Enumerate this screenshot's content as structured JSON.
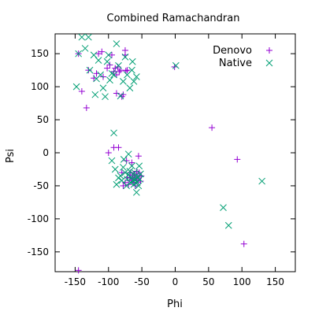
{
  "chart_data": {
    "type": "scatter",
    "title": "Combined Ramachandran",
    "xlabel": "Phi",
    "ylabel": "Psi",
    "xlim": [
      -180,
      180
    ],
    "ylim": [
      -180,
      180
    ],
    "xticks": [
      -150,
      -100,
      -50,
      0,
      50,
      100,
      150
    ],
    "yticks": [
      -150,
      -100,
      -50,
      0,
      50,
      100,
      150
    ],
    "grid": false,
    "legend_position": "top-right",
    "series": [
      {
        "name": "Denovo",
        "marker": "plus",
        "color": "#9400d3",
        "points": [
          [
            -145,
            150
          ],
          [
            -140,
            93
          ],
          [
            -133,
            68
          ],
          [
            -130,
            125
          ],
          [
            -122,
            113
          ],
          [
            -118,
            120
          ],
          [
            -115,
            150
          ],
          [
            -110,
            153
          ],
          [
            -108,
            115
          ],
          [
            -102,
            128
          ],
          [
            -98,
            133
          ],
          [
            -95,
            148
          ],
          [
            -92,
            123
          ],
          [
            -90,
            128
          ],
          [
            -88,
            118
          ],
          [
            -86,
            130
          ],
          [
            -84,
            123
          ],
          [
            -82,
            125
          ],
          [
            -80,
            85
          ],
          [
            -78,
            88
          ],
          [
            -75,
            155
          ],
          [
            -75,
            148
          ],
          [
            -74,
            124
          ],
          [
            -72,
            125
          ],
          [
            -88,
            90
          ],
          [
            -1,
            130
          ],
          [
            55,
            38
          ],
          [
            93,
            -10
          ],
          [
            103,
            -138
          ],
          [
            -145,
            -178
          ],
          [
            -100,
            0
          ],
          [
            -92,
            8
          ],
          [
            -85,
            8
          ],
          [
            -80,
            -30
          ],
          [
            -78,
            -50
          ],
          [
            -75,
            -45
          ],
          [
            -73,
            -12
          ],
          [
            -72,
            -38
          ],
          [
            -70,
            -48
          ],
          [
            -68,
            -37
          ],
          [
            -67,
            -30
          ],
          [
            -66,
            -42
          ],
          [
            -65,
            -15
          ],
          [
            -64,
            -35
          ],
          [
            -63,
            -40
          ],
          [
            -62,
            -45
          ],
          [
            -61,
            -33
          ],
          [
            -60,
            -38
          ],
          [
            -60,
            -50
          ],
          [
            -58,
            -28
          ],
          [
            -58,
            -42
          ],
          [
            -57,
            -36
          ],
          [
            -56,
            -45
          ],
          [
            -55,
            -5
          ],
          [
            -55,
            -38
          ],
          [
            -54,
            -30
          ],
          [
            -52,
            -43
          ],
          [
            -51,
            -35
          ]
        ]
      },
      {
        "name": "Native",
        "marker": "x",
        "color": "#009e73",
        "points": [
          [
            -148,
            100
          ],
          [
            -145,
            150
          ],
          [
            -140,
            175
          ],
          [
            -135,
            158
          ],
          [
            -130,
            175
          ],
          [
            -128,
            125
          ],
          [
            -122,
            148
          ],
          [
            -120,
            88
          ],
          [
            -118,
            112
          ],
          [
            -115,
            140
          ],
          [
            -112,
            118
          ],
          [
            -108,
            98
          ],
          [
            -105,
            85
          ],
          [
            -102,
            138
          ],
          [
            -100,
            148
          ],
          [
            -98,
            110
          ],
          [
            -95,
            120
          ],
          [
            -92,
            118
          ],
          [
            -88,
            165
          ],
          [
            -85,
            132
          ],
          [
            -82,
            86
          ],
          [
            -78,
            108
          ],
          [
            -75,
            145
          ],
          [
            -72,
            118
          ],
          [
            -68,
            98
          ],
          [
            -65,
            125
          ],
          [
            -62,
            108
          ],
          [
            -58,
            115
          ],
          [
            -64,
            138
          ],
          [
            1,
            132
          ],
          [
            72,
            -83
          ],
          [
            80,
            -110
          ],
          [
            130,
            -43
          ],
          [
            -92,
            30
          ],
          [
            -95,
            -12
          ],
          [
            -90,
            -25
          ],
          [
            -88,
            -48
          ],
          [
            -85,
            -38
          ],
          [
            -82,
            -35
          ],
          [
            -80,
            -42
          ],
          [
            -78,
            -22
          ],
          [
            -77,
            -10
          ],
          [
            -75,
            -30
          ],
          [
            -73,
            -50
          ],
          [
            -72,
            -40
          ],
          [
            -70,
            -33
          ],
          [
            -70,
            -2
          ],
          [
            -68,
            -28
          ],
          [
            -67,
            -45
          ],
          [
            -66,
            -38
          ],
          [
            -65,
            -20
          ],
          [
            -63,
            -42
          ],
          [
            -62,
            -48
          ],
          [
            -61,
            -30
          ],
          [
            -60,
            -40
          ],
          [
            -59,
            -35
          ],
          [
            -58,
            -60
          ],
          [
            -57,
            -45
          ],
          [
            -56,
            -38
          ],
          [
            -55,
            -50
          ],
          [
            -54,
            -20
          ],
          [
            -53,
            -40
          ],
          [
            -52,
            -32
          ]
        ]
      }
    ]
  }
}
